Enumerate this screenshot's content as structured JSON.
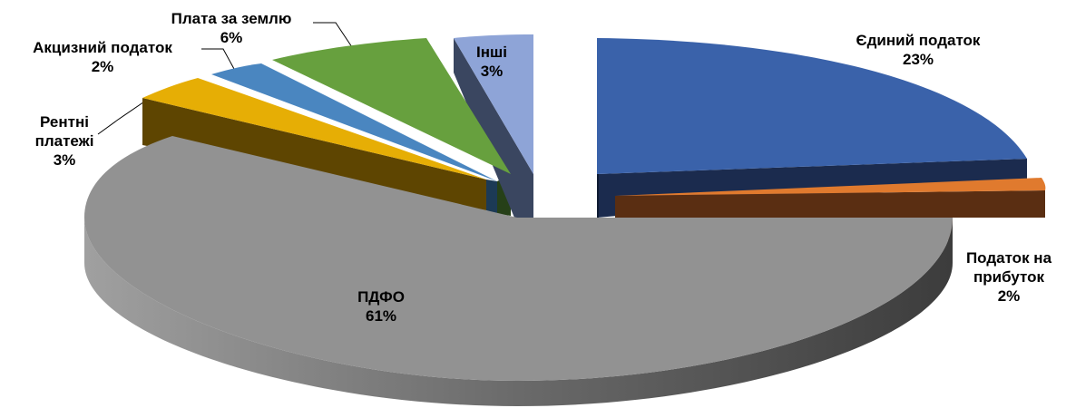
{
  "chart_data": {
    "type": "pie",
    "title": "",
    "style": "3d-exploded",
    "legend": "none",
    "slices": [
      {
        "name": "Єдиний податок",
        "value": 23,
        "label": "23%",
        "color": "#3A62AA",
        "side_color": "#1B2B4E"
      },
      {
        "name": "Податок на прибуток",
        "value": 2,
        "label": "2%",
        "color": "#E07A2E",
        "side_color": "#5A2E12"
      },
      {
        "name": "ПДФО",
        "value": 61,
        "label": "61%",
        "color": "#929292",
        "side_color": "#5A5A5A"
      },
      {
        "name": "Рентні платежі",
        "value": 3,
        "label": "3%",
        "color": "#E6AE05",
        "side_color": "#5E4501"
      },
      {
        "name": "Акцизний податок",
        "value": 2,
        "label": "2%",
        "color": "#4A86C0",
        "side_color": "#1C3A55"
      },
      {
        "name": "Плата за землю",
        "value": 6,
        "label": "6%",
        "color": "#67A03E",
        "side_color": "#264018"
      },
      {
        "name": "Інші",
        "value": 3,
        "label": "3%",
        "color": "#8EA4D7",
        "side_color": "#3A4660"
      }
    ]
  }
}
